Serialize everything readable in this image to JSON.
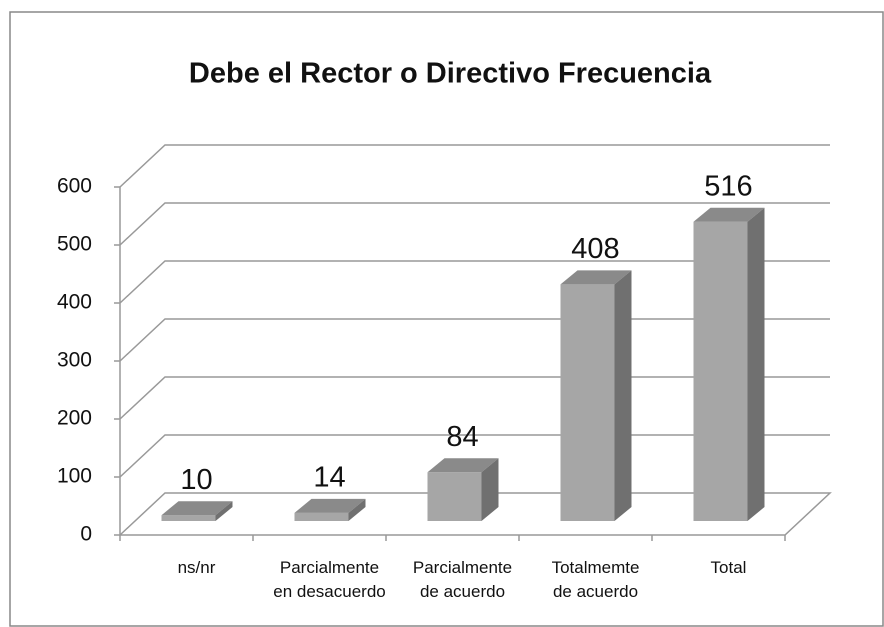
{
  "chart_data": {
    "type": "bar3d",
    "title": "Debe el Rector o Directivo Frecuencia",
    "categories": [
      [
        "ns/nr"
      ],
      [
        "Parcialmente",
        "en desacuerdo"
      ],
      [
        "Parcialmente",
        "de acuerdo"
      ],
      [
        "Totalmemte",
        "de acuerdo"
      ],
      [
        "Total"
      ]
    ],
    "values": [
      10,
      14,
      84,
      408,
      516
    ],
    "color": "#a6a6a6",
    "ylim": [
      0,
      600
    ],
    "yticks": [
      0,
      100,
      200,
      300,
      400,
      500,
      600
    ],
    "grid": true
  }
}
